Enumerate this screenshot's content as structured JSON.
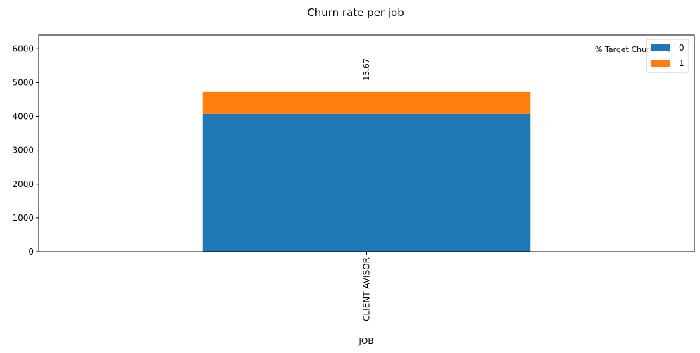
{
  "chart_data": {
    "type": "bar",
    "stacked": true,
    "title": "Churn rate per job",
    "xlabel": "JOB",
    "ylabel": "",
    "categories": [
      "CLIENT AVISOR"
    ],
    "series": [
      {
        "name": "0",
        "values": [
          4075
        ],
        "color": "#1f77b4"
      },
      {
        "name": "1",
        "values": [
          645
        ],
        "color": "#ff7f0e"
      }
    ],
    "bar_labels": [
      "13.67"
    ],
    "annotation": "% Target Churn = 1",
    "ylim": [
      0,
      6400
    ],
    "yticks": [
      0,
      1000,
      2000,
      3000,
      4000,
      5000,
      6000
    ],
    "legend_position": "top-right",
    "grid": false
  }
}
